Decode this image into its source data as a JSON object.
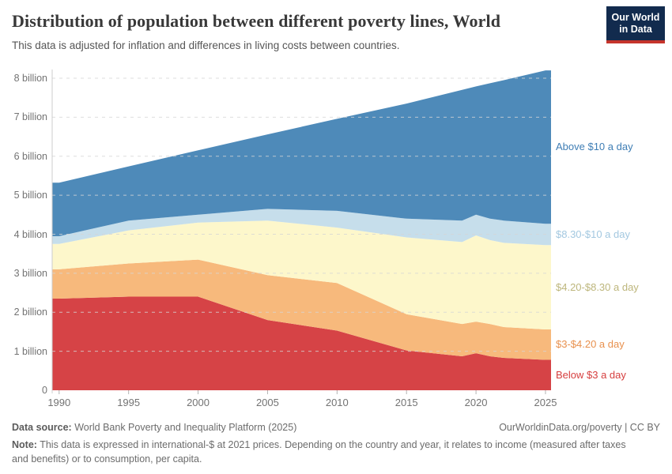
{
  "header": {
    "title": "Distribution of population between different poverty lines, World",
    "subtitle": "This data is adjusted for inflation and differences in living costs between countries."
  },
  "logo": {
    "line1": "Our World",
    "line2": "in Data",
    "bg_color": "#122B4E",
    "accent_color": "#C5342B"
  },
  "chart_data": {
    "type": "area",
    "stacked": true,
    "title": "Distribution of population between different poverty lines, World",
    "xlabel": "",
    "ylabel": "",
    "unit": "billion people",
    "xlim": [
      1989.5,
      2025.4
    ],
    "ylim": [
      0,
      8
    ],
    "grid": "horizontal-dashed",
    "legend_position": "right-inline",
    "x": [
      1990,
      1995,
      2000,
      2005,
      2010,
      2015,
      2019,
      2020,
      2021,
      2022,
      2025
    ],
    "series": [
      {
        "name": "below-3",
        "label": "Below $3 a day",
        "color": "#D64346",
        "label_color": "#D63E3E",
        "values": [
          2.35,
          2.4,
          2.4,
          1.8,
          1.53,
          1.02,
          0.87,
          0.95,
          0.87,
          0.83,
          0.78
        ]
      },
      {
        "name": "3-to-420",
        "label": "$3-$4.20 a day",
        "color": "#F7B97C",
        "label_color": "#E8914E",
        "values": [
          0.75,
          0.85,
          0.95,
          1.15,
          1.22,
          0.93,
          0.83,
          0.81,
          0.83,
          0.79,
          0.78
        ]
      },
      {
        "name": "420-to-830",
        "label": "$4.20-$8.30 a day",
        "color": "#FDF7CB",
        "label_color": "#BDB67C",
        "values": [
          0.65,
          0.85,
          0.95,
          1.4,
          1.42,
          1.97,
          2.1,
          2.21,
          2.15,
          2.16,
          2.16
        ]
      },
      {
        "name": "830-to-10",
        "label": "$8.30-$10 a day",
        "color": "#C6DEEB",
        "label_color": "#A3C8E0",
        "values": [
          0.2,
          0.25,
          0.2,
          0.3,
          0.43,
          0.48,
          0.55,
          0.53,
          0.55,
          0.57,
          0.55
        ]
      },
      {
        "name": "above-10",
        "label": "Above $10 a day",
        "color": "#4E8AB9",
        "label_color": "#3F7EB5",
        "values": [
          1.37,
          1.39,
          1.65,
          1.91,
          2.36,
          2.95,
          3.35,
          3.29,
          3.47,
          3.6,
          3.93
        ]
      }
    ],
    "yticks": [
      {
        "value": 0,
        "label": "0"
      },
      {
        "value": 1,
        "label": "1 billion"
      },
      {
        "value": 2,
        "label": "2 billion"
      },
      {
        "value": 3,
        "label": "3 billion"
      },
      {
        "value": 4,
        "label": "4 billion"
      },
      {
        "value": 5,
        "label": "5 billion"
      },
      {
        "value": 6,
        "label": "6 billion"
      },
      {
        "value": 7,
        "label": "7 billion"
      },
      {
        "value": 8,
        "label": "8 billion"
      }
    ],
    "xticks": [
      1990,
      1995,
      2000,
      2005,
      2010,
      2015,
      2020,
      2025
    ]
  },
  "footer": {
    "source_label": "Data source:",
    "source_value": " World Bank Poverty and Inequality Platform (2025)",
    "link": "OurWorldinData.org/poverty | CC BY",
    "note_label": "Note:",
    "note_value": " This data is expressed in international-$ at 2021 prices. Depending on the country and year, it relates to income (measured after taxes and benefits) or to consumption, per capita."
  }
}
